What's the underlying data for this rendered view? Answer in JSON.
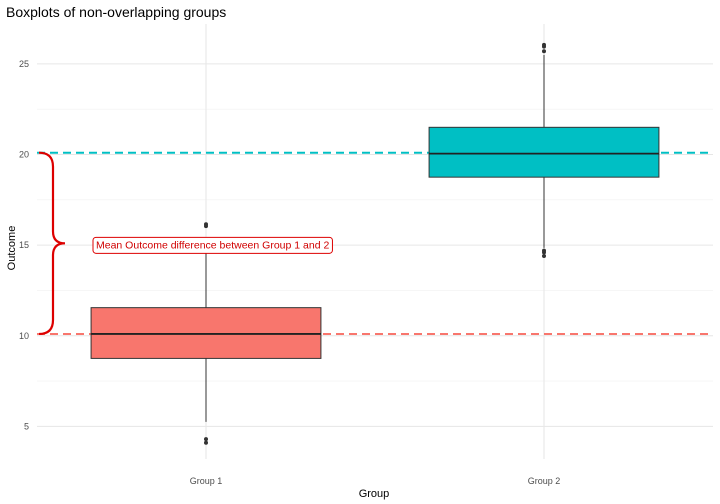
{
  "chart_data": {
    "type": "boxplot",
    "title": "Boxplots of non-overlapping groups",
    "xlabel": "Group",
    "ylabel": "Outcome",
    "ylim": [
      3.2,
      27.2
    ],
    "yticks": [
      5,
      10,
      15,
      20,
      25
    ],
    "categories": [
      "Group 1",
      "Group 2"
    ],
    "boxes": [
      {
        "category": "Group 1",
        "q1": 8.75,
        "median": 10.1,
        "q3": 11.55,
        "whisker_low": 5.25,
        "whisker_high": 14.8,
        "outliers": [
          4.1,
          4.3,
          16.05,
          16.15
        ],
        "color": "#F8766D"
      },
      {
        "category": "Group 2",
        "q1": 18.75,
        "median": 20.05,
        "q3": 21.5,
        "whisker_low": 14.85,
        "whisker_high": 25.5,
        "outliers": [
          14.4,
          14.6,
          14.7,
          25.7,
          25.95,
          26.05
        ],
        "color": "#00BFC4"
      }
    ],
    "mean_lines": [
      {
        "value": 10.1,
        "color": "#F8766D"
      },
      {
        "value": 20.1,
        "color": "#00BFC4"
      }
    ],
    "annotation": {
      "text": "Mean Outcome difference between Group 1 and 2",
      "from": 10.1,
      "to": 20.1,
      "color": "#DD0000"
    },
    "grid": true
  }
}
